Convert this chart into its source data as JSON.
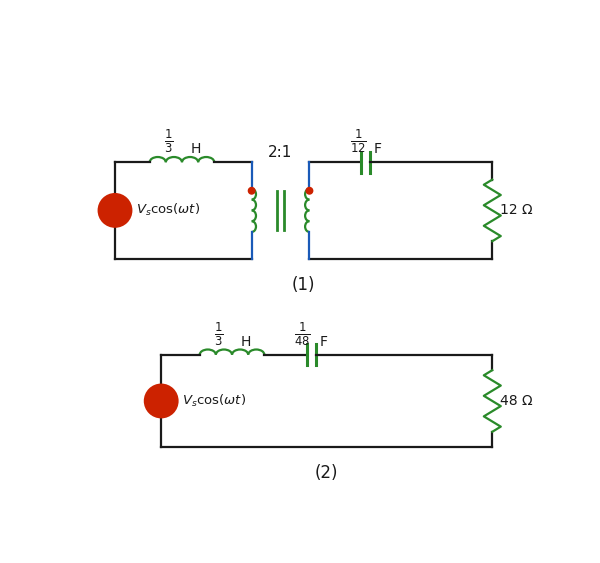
{
  "fig_width": 6.0,
  "fig_height": 5.63,
  "dpi": 100,
  "bg_color": "#ffffff",
  "wire_color": "#1a1a1a",
  "gc": "#2a8a2a",
  "bc": "#1a5ab8",
  "source_fill": "#f5c518",
  "source_border": "#cc2200",
  "dot_color": "#cc2200",
  "text_color": "#1a1a1a",
  "c1_label": "(1)",
  "c2_label": "(2)",
  "res1_label": "12 Ω",
  "res2_label": "48 Ω"
}
